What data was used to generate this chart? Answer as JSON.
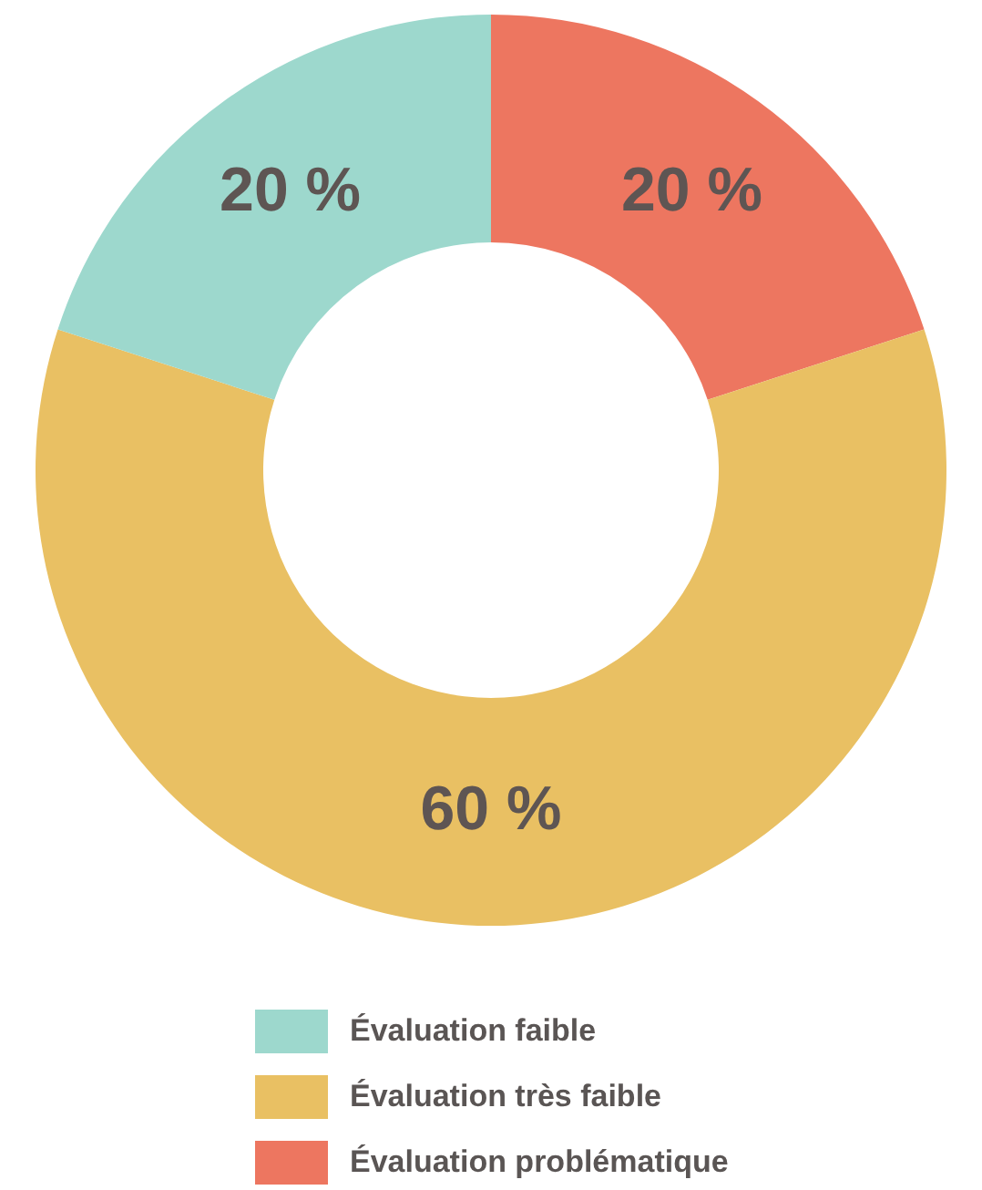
{
  "chart_data": {
    "type": "donut",
    "categories": [
      "Évaluation faible",
      "Évaluation très faible",
      "Évaluation problématique"
    ],
    "values": [
      20,
      60,
      20
    ],
    "colors": [
      "#9dd8cd",
      "#e9c063",
      "#ed7660"
    ],
    "value_labels": [
      "20 %",
      "60 %",
      "20 %"
    ],
    "legend": "bottom"
  }
}
